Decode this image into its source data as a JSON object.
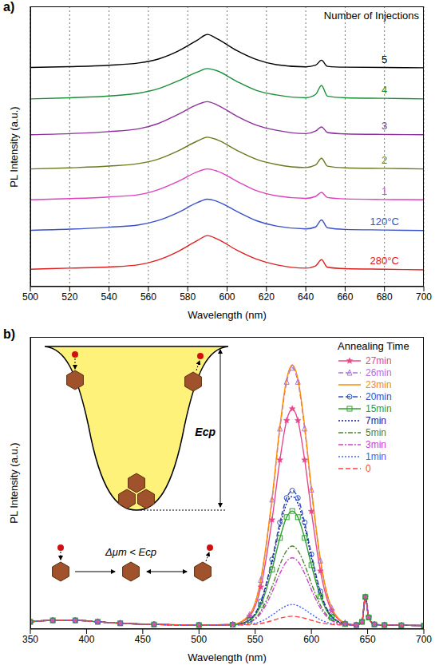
{
  "chart_data": [
    {
      "type": "line",
      "label": "a)",
      "xlabel": "Wavelength (nm)",
      "ylabel": "PL Intensity (a.u.)",
      "annotations": [
        "Number of Injections"
      ],
      "xlim": [
        500,
        700
      ],
      "xticks": [
        500,
        520,
        540,
        560,
        580,
        600,
        620,
        640,
        660,
        680,
        700
      ],
      "ylim": [
        0,
        100
      ],
      "tick_labels": "x",
      "grid": true,
      "x": [
        500,
        520,
        540,
        555,
        565,
        575,
        585,
        590,
        595,
        605,
        615,
        625,
        640,
        645,
        648,
        651,
        660,
        680,
        700
      ],
      "series": [
        {
          "name": "5",
          "color": "#000000",
          "line_style": "solid",
          "marker": "none",
          "values": [
            78.2,
            78.5,
            79.0,
            79.8,
            81.2,
            84.0,
            88.0,
            90.0,
            88.4,
            84.2,
            81.0,
            79.2,
            78.4,
            79.0,
            80.8,
            78.6,
            78.3,
            78.2,
            78.1
          ]
        },
        {
          "name": "4",
          "color": "#1a8f3a",
          "line_style": "solid",
          "marker": "none",
          "values": [
            67.0,
            67.4,
            68.0,
            69.0,
            70.6,
            73.4,
            76.6,
            77.8,
            77.0,
            73.2,
            70.0,
            68.4,
            67.4,
            68.6,
            71.8,
            68.0,
            67.4,
            67.2,
            67.0
          ]
        },
        {
          "name": "3",
          "color": "#8e2f9e",
          "line_style": "solid",
          "marker": "none",
          "values": [
            54.2,
            54.6,
            55.3,
            56.3,
            58.2,
            61.4,
            65.0,
            66.0,
            64.8,
            60.8,
            57.6,
            55.8,
            54.6,
            55.5,
            57.0,
            55.0,
            54.5,
            54.3,
            54.2
          ]
        },
        {
          "name": "2",
          "color": "#6b7a1e",
          "line_style": "solid",
          "marker": "none",
          "values": [
            42.0,
            42.4,
            43.0,
            43.9,
            45.5,
            48.4,
            52.0,
            53.3,
            52.4,
            48.6,
            45.4,
            43.6,
            42.5,
            43.4,
            45.8,
            43.0,
            42.4,
            42.2,
            42.0
          ]
        },
        {
          "name": "1",
          "color": "#e040c0",
          "line_style": "solid",
          "marker": "none",
          "values": [
            31.0,
            31.4,
            32.0,
            32.8,
            34.6,
            37.5,
            41.0,
            42.0,
            41.2,
            37.6,
            34.2,
            32.4,
            31.5,
            32.2,
            33.6,
            31.8,
            31.3,
            31.1,
            31.0
          ]
        },
        {
          "name": "120°C",
          "color": "#3a50c8",
          "line_style": "solid",
          "marker": "none",
          "values": [
            20.1,
            20.5,
            21.2,
            22.0,
            23.6,
            26.4,
            30.0,
            31.2,
            30.4,
            26.8,
            23.5,
            21.6,
            20.6,
            21.3,
            23.8,
            21.0,
            20.4,
            20.2,
            20.0
          ]
        },
        {
          "name": "280°C",
          "color": "#e02020",
          "line_style": "solid",
          "marker": "none",
          "values": [
            6.2,
            6.6,
            7.0,
            7.8,
            9.5,
            12.5,
            16.5,
            18.2,
            17.0,
            13.0,
            9.8,
            7.8,
            6.6,
            7.4,
            9.6,
            6.9,
            6.4,
            6.2,
            6.0
          ]
        }
      ]
    },
    {
      "type": "line",
      "label": "b)",
      "xlabel": "Wavelength (nm)",
      "ylabel": "PL Intensity (a.u.)",
      "legend_title": "Annealing Time",
      "legend": "upper right",
      "annotations": [
        "Ecp",
        "Δμm < Ecp"
      ],
      "xlim": [
        350,
        700
      ],
      "xticks": [
        350,
        400,
        450,
        500,
        550,
        600,
        650,
        700
      ],
      "ylim": [
        0,
        100
      ],
      "tick_labels": "x",
      "grid": false,
      "x": [
        350,
        370,
        390,
        410,
        430,
        460,
        500,
        530,
        545,
        555,
        565,
        572,
        578,
        583,
        588,
        594,
        600,
        608,
        618,
        630,
        640,
        645,
        648,
        651,
        656,
        665,
        680,
        700
      ],
      "series": [
        {
          "name": "27min",
          "color": "#e8488a",
          "line_style": "solid",
          "marker": "star",
          "values": [
            2.5,
            3.0,
            3.0,
            2.5,
            2.0,
            1.6,
            1.4,
            1.6,
            4.4,
            14.4,
            37.4,
            57.9,
            71.4,
            75.4,
            71.4,
            57.9,
            40.3,
            19.9,
            6.3,
            2.0,
            1.4,
            2.5,
            11,
            4,
            1.6,
            1.4,
            1.3,
            1.2
          ]
        },
        {
          "name": "26min",
          "color": "#b070d8",
          "line_style": "dashed",
          "marker": "triangle",
          "values": [
            2.5,
            3.0,
            3.0,
            2.5,
            2.0,
            1.6,
            1.4,
            1.6,
            4.9,
            16.8,
            44.3,
            68.6,
            84.6,
            89.4,
            84.6,
            68.6,
            47.7,
            23.4,
            7.2,
            2.1,
            1.4,
            2.5,
            11,
            4,
            1.6,
            1.4,
            1.3,
            1.2
          ]
        },
        {
          "name": "23min",
          "color": "#ff8c00",
          "line_style": "solid",
          "marker": "none",
          "values": [
            2.5,
            3.0,
            3.0,
            2.5,
            2.0,
            1.6,
            1.4,
            1.6,
            5.0,
            17.0,
            44.7,
            69.4,
            85.6,
            90.4,
            85.6,
            69.4,
            48.2,
            23.7,
            7.3,
            2.1,
            1.4,
            2.5,
            11,
            4,
            1.6,
            1.4,
            1.3,
            1.2
          ]
        },
        {
          "name": "20min",
          "color": "#3050c0",
          "line_style": "dashed",
          "marker": "circle",
          "values": [
            2.5,
            3.0,
            3.0,
            2.5,
            2.0,
            1.6,
            1.4,
            1.5,
            3.2,
            9.5,
            23.8,
            36.5,
            44.9,
            47.4,
            44.9,
            36.5,
            25.6,
            12.9,
            4.4,
            1.8,
            1.4,
            2.5,
            11,
            4,
            1.6,
            1.4,
            1.3,
            1.2
          ]
        },
        {
          "name": "15min",
          "color": "#30a030",
          "line_style": "solid",
          "marker": "square",
          "values": [
            2.5,
            3.0,
            3.0,
            2.5,
            2.0,
            1.6,
            1.4,
            1.5,
            3.0,
            8.2,
            20.4,
            31.2,
            38.3,
            40.4,
            38.3,
            31.2,
            21.9,
            11.2,
            4.0,
            1.7,
            1.4,
            2.5,
            11,
            4,
            1.6,
            1.4,
            1.3,
            1.2
          ]
        },
        {
          "name": "7min",
          "color": "#1a1a90",
          "line_style": "dotted",
          "marker": "none",
          "values": [
            2.5,
            3.0,
            3.0,
            2.5,
            2.0,
            1.6,
            1.4,
            1.5,
            3.2,
            9.1,
            22.8,
            35.0,
            43.0,
            45.4,
            43.0,
            35.0,
            24.5,
            12.4,
            4.3,
            1.8,
            1.4,
            2.5,
            11,
            4,
            1.6,
            1.4,
            1.3,
            1.2
          ]
        },
        {
          "name": "5min",
          "color": "#508030",
          "line_style": "dashdot",
          "marker": "none",
          "values": [
            2.5,
            3.0,
            3.0,
            2.5,
            2.0,
            1.6,
            1.4,
            1.5,
            2.5,
            6.1,
            14.5,
            22.0,
            26.9,
            28.4,
            26.9,
            22.0,
            15.6,
            8.2,
            3.2,
            1.6,
            1.4,
            2.5,
            11,
            4,
            1.6,
            1.4,
            1.3,
            1.2
          ]
        },
        {
          "name": "3min",
          "color": "#d040d0",
          "line_style": "dashdot",
          "marker": "none",
          "values": [
            2.5,
            3.0,
            3.0,
            2.5,
            2.0,
            1.6,
            1.4,
            1.4,
            2.3,
            5.4,
            12.6,
            19.0,
            23.2,
            24.4,
            23.2,
            19.0,
            13.5,
            7.2,
            2.9,
            1.6,
            1.4,
            2.5,
            11,
            4,
            1.6,
            1.4,
            1.3,
            1.2
          ]
        },
        {
          "name": "1min",
          "color": "#4060ff",
          "line_style": "dotted",
          "marker": "none",
          "values": [
            2.5,
            3.0,
            3.0,
            2.5,
            2.0,
            1.6,
            1.4,
            1.4,
            1.7,
            2.6,
            4.8,
            6.7,
            8.0,
            8.4,
            8.0,
            6.7,
            5.1,
            3.2,
            1.9,
            1.5,
            1.4,
            2.5,
            11,
            4,
            1.6,
            1.4,
            1.3,
            1.2
          ]
        },
        {
          "name": "0",
          "color": "#ff4040",
          "line_style": "dashed",
          "marker": "none",
          "values": [
            2.5,
            3.0,
            3.0,
            2.5,
            2.0,
            1.6,
            1.4,
            1.4,
            1.5,
            1.9,
            2.9,
            3.7,
            4.2,
            4.4,
            4.2,
            3.7,
            3.0,
            2.2,
            1.6,
            1.4,
            1.4,
            2.5,
            11,
            4,
            1.6,
            1.4,
            1.3,
            1.2
          ]
        }
      ]
    }
  ]
}
